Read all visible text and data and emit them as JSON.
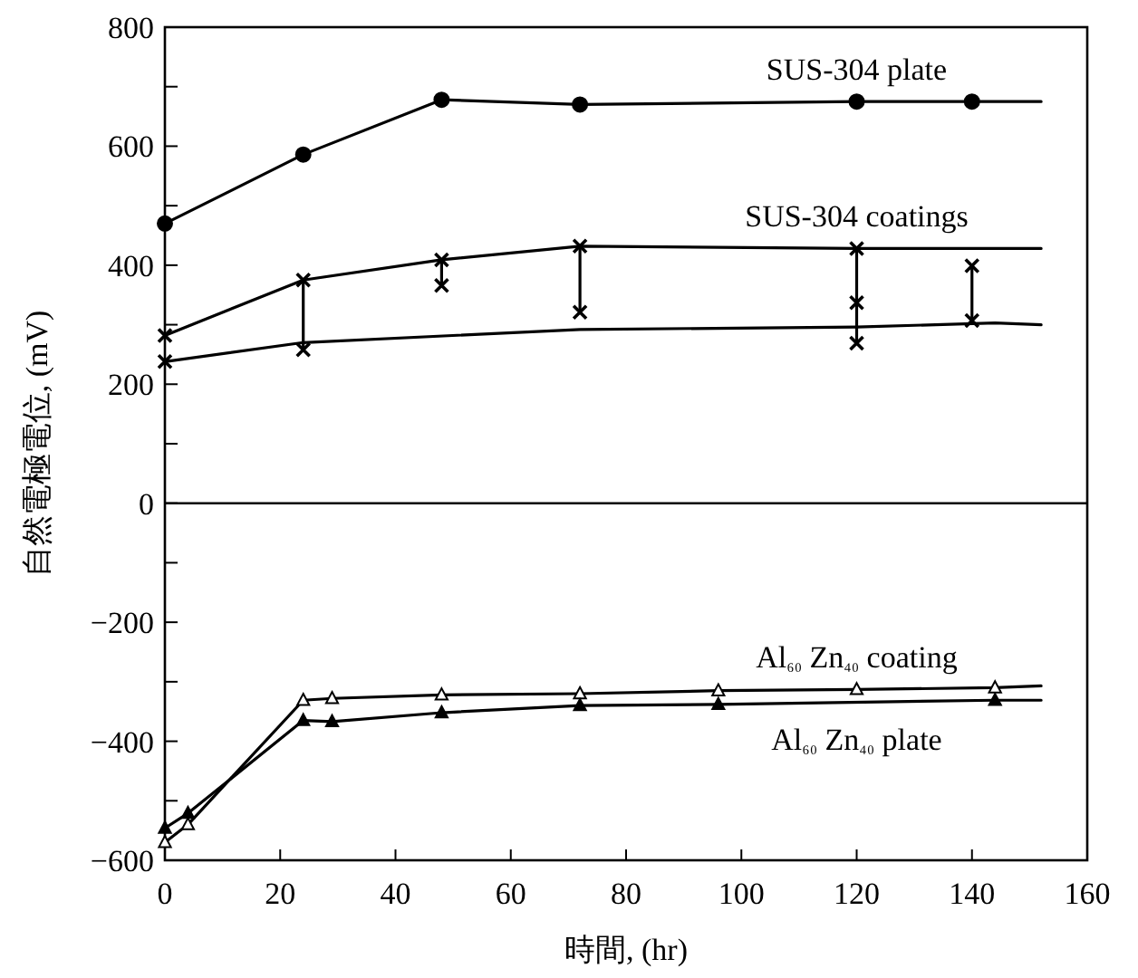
{
  "chart_data": {
    "type": "line",
    "xlabel": "時間, (hr)",
    "ylabel": "自然電極電位, (mV)",
    "xlim": [
      0,
      160
    ],
    "ylim": [
      -600,
      800
    ],
    "xticks": [
      0,
      20,
      40,
      60,
      80,
      100,
      120,
      140,
      160
    ],
    "yticks": [
      {
        "value": -600,
        "label": "−600"
      },
      {
        "value": -500,
        "label": null
      },
      {
        "value": -400,
        "label": "−400"
      },
      {
        "value": -300,
        "label": null
      },
      {
        "value": -200,
        "label": "−200"
      },
      {
        "value": -100,
        "label": null
      },
      0,
      {
        "value": 100,
        "label": null
      },
      200,
      {
        "value": 300,
        "label": null
      },
      400,
      {
        "value": 500,
        "label": null
      },
      600,
      {
        "value": 700,
        "label": null
      },
      800
    ],
    "grid": false,
    "ref_lines": [
      {
        "axis": "y",
        "value": 0,
        "color": "#000000",
        "line_style": "solid"
      }
    ],
    "series": [
      {
        "type": "line",
        "name": "SUS-304 plate",
        "color": "#000000",
        "marker": "none",
        "line_style": "solid",
        "x": [
          0,
          24,
          48,
          72,
          120,
          140,
          152
        ],
        "values": [
          470,
          586,
          678,
          670,
          675,
          675,
          675
        ]
      },
      {
        "type": "scatter",
        "color": "#000000",
        "marker": "circle",
        "x": [
          0,
          24,
          48,
          72,
          120,
          140
        ],
        "values": [
          470,
          586,
          678,
          670,
          675,
          675
        ]
      },
      {
        "type": "line",
        "name": "SUS-304 coatings",
        "color": "#000000",
        "marker": "none",
        "line_style": "solid",
        "x": [
          0,
          24,
          48,
          72,
          120,
          152
        ],
        "values": [
          282,
          375,
          409,
          432,
          428,
          428
        ]
      },
      {
        "type": "line",
        "color": "#000000",
        "marker": "none",
        "line_style": "solid",
        "x": [
          0,
          24,
          72,
          120,
          144,
          152
        ],
        "values": [
          238,
          270,
          292,
          296,
          303,
          300
        ]
      },
      {
        "type": "scatter",
        "color": "#000000",
        "marker": "cross",
        "x": [
          0,
          24,
          48,
          72,
          120,
          140,
          0,
          24,
          48,
          72,
          120,
          120,
          140
        ],
        "values": [
          282,
          375,
          409,
          432,
          428,
          399,
          238,
          258,
          366,
          321,
          337,
          269,
          307
        ]
      },
      {
        "type": "line",
        "color": "#000000",
        "marker": "none",
        "line_style": "solid",
        "x": [
          24,
          24,
          null,
          48,
          48,
          null,
          72,
          72,
          null,
          120,
          120,
          null,
          140,
          140
        ],
        "values": [
          375,
          258,
          null,
          409,
          366,
          null,
          432,
          321,
          null,
          428,
          269,
          null,
          399,
          307
        ]
      },
      {
        "type": "line",
        "name": "Al₆₀ Zn₄₀ coating",
        "color": "#000000",
        "marker": "none",
        "line_style": "solid",
        "x": [
          0,
          4,
          24,
          29,
          48,
          72,
          96,
          120,
          144,
          152
        ],
        "values": [
          -570,
          -540,
          -331,
          -328,
          -322,
          -320,
          -315,
          -313,
          -310,
          -307
        ]
      },
      {
        "type": "scatter",
        "color": "#ffffff",
        "marker": "triangle",
        "x": [
          0,
          4,
          24,
          29,
          48,
          72,
          96,
          120,
          144
        ],
        "values": [
          -570,
          -540,
          -331,
          -328,
          -322,
          -320,
          -315,
          -313,
          -310
        ]
      },
      {
        "type": "line",
        "name": "Al₆₀ Zn₄₀  plate",
        "color": "#000000",
        "marker": "none",
        "line_style": "solid",
        "x": [
          0,
          4,
          24,
          29,
          48,
          72,
          96,
          144,
          152
        ],
        "values": [
          -546,
          -521,
          -365,
          -367,
          -352,
          -340,
          -338,
          -331,
          -331
        ]
      },
      {
        "type": "scatter",
        "color": "#000000",
        "marker": "triangle",
        "x": [
          0,
          4,
          24,
          29,
          48,
          72,
          96,
          144
        ],
        "values": [
          -546,
          -521,
          -365,
          -367,
          -352,
          -340,
          -338,
          -331
        ]
      }
    ]
  }
}
